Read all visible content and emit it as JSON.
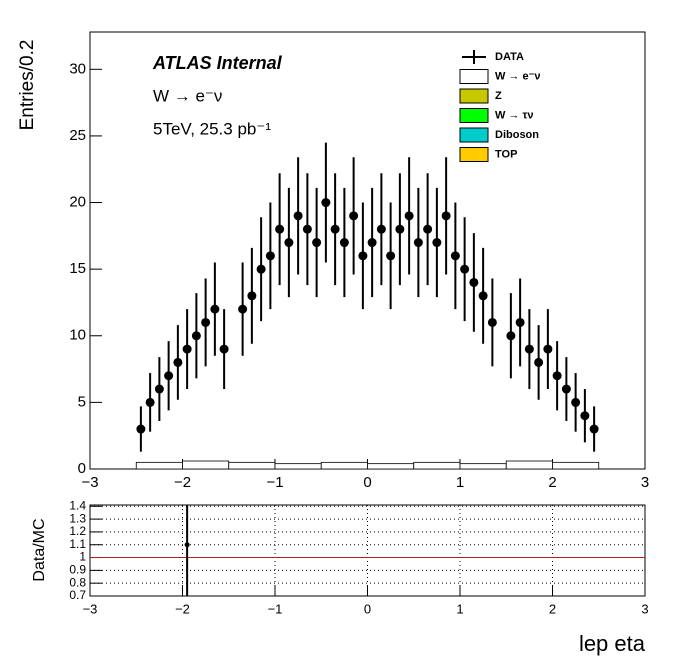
{
  "chart_data": [
    {
      "type": "errorbar",
      "title": "ATLAS Internal",
      "subtitle": "W → e⁻ν",
      "annotation": "5TeV, 25.3 pb⁻¹",
      "y_label": "Entries/0.2",
      "xlim": [
        -3,
        3
      ],
      "ylim": [
        0,
        32.8
      ],
      "xticks": [
        {
          "value": -3,
          "label": "−3"
        },
        {
          "value": -2,
          "label": "−2"
        },
        {
          "value": -1,
          "label": "−1"
        },
        0,
        1,
        2,
        3
      ],
      "yticks": [
        0,
        5,
        10,
        15,
        20,
        25,
        30
      ],
      "series": [
        {
          "name": "DATA",
          "color": "#000000",
          "x": [
            -2.45,
            -2.35,
            -2.25,
            -2.15,
            -2.05,
            -1.95,
            -1.85,
            -1.75,
            -1.65,
            -1.55,
            -1.35,
            -1.25,
            -1.15,
            -1.05,
            -0.95,
            -0.85,
            -0.75,
            -0.65,
            -0.55,
            -0.45,
            -0.35,
            -0.25,
            -0.15,
            -0.05,
            0.05,
            0.15,
            0.25,
            0.35,
            0.45,
            0.55,
            0.65,
            0.75,
            0.85,
            0.95,
            1.05,
            1.15,
            1.25,
            1.35,
            1.55,
            1.65,
            1.75,
            1.85,
            1.95,
            2.05,
            2.15,
            2.25,
            2.35,
            2.45
          ],
          "values": [
            3,
            5,
            6,
            7,
            8,
            9,
            10,
            11,
            12,
            9,
            12,
            13,
            15,
            16,
            18,
            17,
            19,
            18,
            17,
            20,
            18,
            17,
            19,
            16,
            17,
            18,
            16,
            18,
            19,
            17,
            18,
            17,
            19,
            16,
            15,
            14,
            13,
            11,
            10,
            11,
            9,
            8,
            9,
            7,
            6,
            5,
            4,
            3
          ],
          "errors": [
            1.7,
            2.2,
            2.4,
            2.6,
            2.8,
            3,
            3.2,
            3.3,
            3.5,
            3,
            3.5,
            3.6,
            3.9,
            4,
            4.2,
            4.1,
            4.4,
            4.2,
            4.1,
            4.5,
            4.2,
            4.1,
            4.4,
            4,
            4.1,
            4.2,
            4,
            4.2,
            4.4,
            4.1,
            4.2,
            4.1,
            4.4,
            4,
            3.9,
            3.7,
            3.6,
            3.3,
            3.2,
            3.3,
            3,
            2.8,
            3,
            2.6,
            2.4,
            2.2,
            2,
            1.7
          ]
        }
      ],
      "stack": [
        {
          "name": "W → e⁻ν",
          "color": "#ffffff",
          "bins": [
            -2.5,
            -2,
            -1.5,
            -1,
            -0.5,
            0,
            0.5,
            1,
            1.5,
            2,
            2.5
          ],
          "values": [
            0.5,
            0.6,
            0.5,
            0.4,
            0.5,
            0.4,
            0.5,
            0.4,
            0.6,
            0.5
          ]
        },
        {
          "name": "Z",
          "color": "#c8c800"
        },
        {
          "name": "W → τν",
          "color": "#00ff00"
        },
        {
          "name": "Diboson",
          "color": "#00cccc"
        },
        {
          "name": "TOP",
          "color": "#ffcc00"
        }
      ]
    },
    {
      "type": "ratio",
      "y_label": "Data/MC",
      "x_label": "lep eta",
      "xlim": [
        -3,
        3
      ],
      "ylim": [
        0.7,
        1.41
      ],
      "xticks": [
        {
          "value": -3,
          "label": "−3"
        },
        {
          "value": -2,
          "label": "−2"
        },
        {
          "value": -1,
          "label": "−1"
        },
        0,
        1,
        2,
        3
      ],
      "yticks": [
        0.7,
        0.8,
        0.9,
        1,
        1.1,
        1.2,
        1.3,
        1.4
      ],
      "grid": true,
      "reference": 1,
      "reference_color": "#b22222",
      "x": [
        -1.95
      ],
      "values": [
        1.1
      ],
      "errors": [
        0.9
      ]
    }
  ]
}
